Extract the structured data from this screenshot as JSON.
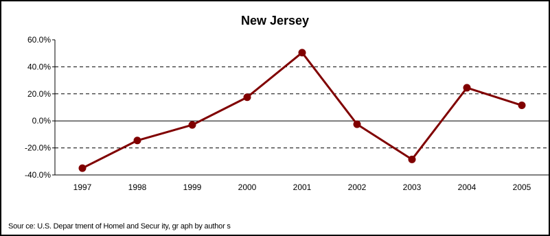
{
  "chart_data": {
    "type": "line",
    "title": "New Jersey",
    "source_note": "Sour ce: U.S. Depar tment of Homel and Secur ity, gr aph by author s",
    "x": [
      "1997",
      "1998",
      "1999",
      "2000",
      "2001",
      "2002",
      "2003",
      "2004",
      "2005"
    ],
    "series": [
      {
        "values": [
          -35.0,
          -14.5,
          -3.0,
          17.5,
          50.5,
          -2.5,
          -28.5,
          24.5,
          11.5
        ],
        "color": "#800000"
      }
    ],
    "ylim": [
      -40,
      60
    ],
    "yticks": [
      -40,
      -20,
      0,
      20,
      40,
      60
    ],
    "ytick_labels": [
      "-40.0%",
      "-20.0%",
      "0.0%",
      "20.0%",
      "40.0%",
      "60.0%"
    ],
    "grid": "dashed horizontal at 20% intervals",
    "legend": "none"
  }
}
